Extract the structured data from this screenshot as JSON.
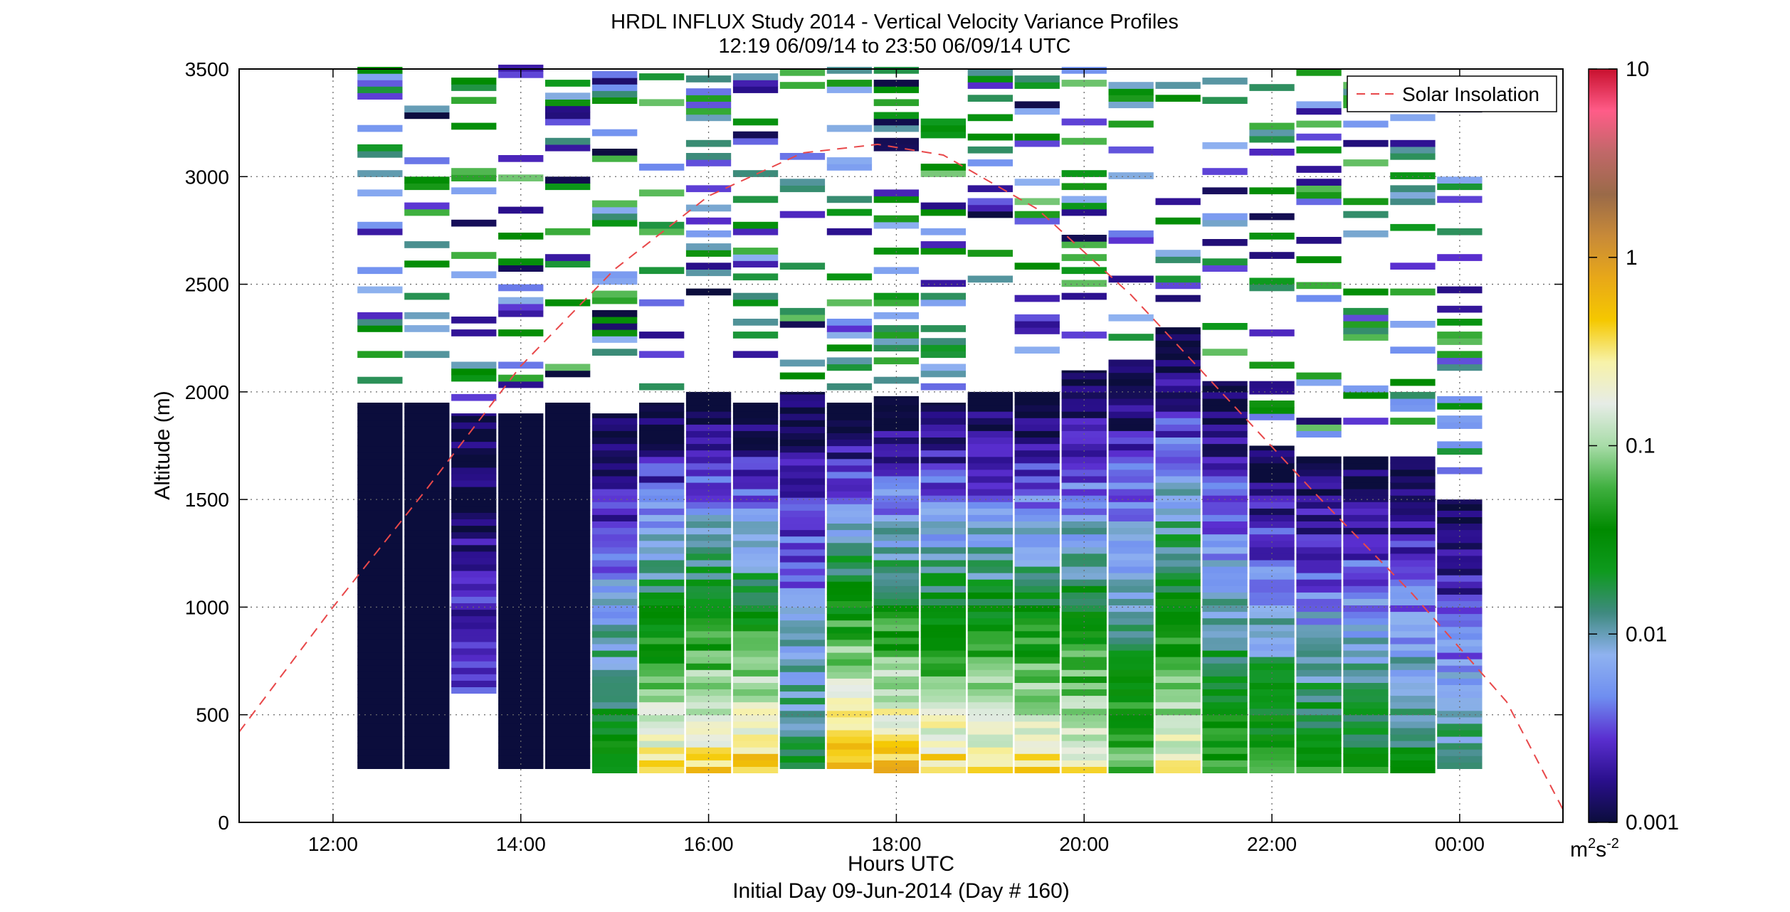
{
  "chart_data": {
    "type": "heatmap",
    "title": "HRDL INFLUX Study 2014 - Vertical Velocity Variance Profiles",
    "subtitle": "12:19 06/09/14 to 23:50 06/09/14  UTC",
    "xlabel": "Hours UTC",
    "xlabel2": "Initial Day 09-Jun-2014 (Day # 160)",
    "ylabel": "Altitude (m)",
    "xlim": [
      11,
      25.1
    ],
    "ylim": [
      0,
      3500
    ],
    "grid": true,
    "x_ticks": [
      {
        "value": 12,
        "label": "12:00"
      },
      {
        "value": 14,
        "label": "14:00"
      },
      {
        "value": 16,
        "label": "16:00"
      },
      {
        "value": 18,
        "label": "18:00"
      },
      {
        "value": 20,
        "label": "20:00"
      },
      {
        "value": 22,
        "label": "22:00"
      },
      {
        "value": 24,
        "label": "00:00"
      }
    ],
    "y_ticks": [
      {
        "value": 0,
        "label": "0"
      },
      {
        "value": 500,
        "label": "500"
      },
      {
        "value": 1000,
        "label": "1000"
      },
      {
        "value": 1500,
        "label": "1500"
      },
      {
        "value": 2000,
        "label": "2000"
      },
      {
        "value": 2500,
        "label": "2500"
      },
      {
        "value": 3000,
        "label": "3000"
      },
      {
        "value": 3500,
        "label": "3500"
      }
    ],
    "colorbar": {
      "scale": "log",
      "range": [
        0.001,
        10
      ],
      "ticks": [
        {
          "value": 0.001,
          "label": "0.001"
        },
        {
          "value": 0.01,
          "label": "0.01"
        },
        {
          "value": 0.1,
          "label": "0.1"
        },
        {
          "value": 1,
          "label": "1"
        },
        {
          "value": 10,
          "label": "10"
        }
      ],
      "unit_base": "m",
      "unit_sup1": "2",
      "unit_mid": "s",
      "unit_sup2": "-2",
      "stops": [
        "#0b0d3c",
        "#2a0f8c",
        "#5a2fd0",
        "#6f8ef0",
        "#8fb2f0",
        "#3f8a80",
        "#0e9a1e",
        "#008a00",
        "#40b040",
        "#a8dca8",
        "#e6ece6",
        "#f7f2a8",
        "#f5c800",
        "#e8a818",
        "#c88a38",
        "#9a6a48",
        "#c06868",
        "#ff5c88",
        "#c8102e"
      ]
    },
    "legend": {
      "entries": [
        {
          "name": "Solar Insolation",
          "color": "#e8484a",
          "style": "dashed"
        }
      ],
      "position": "top-right"
    },
    "time_columns": [
      12.5,
      13.0,
      13.5,
      14.0,
      14.5,
      15.0,
      15.5,
      16.0,
      16.5,
      17.0,
      17.5,
      18.0,
      18.5,
      19.0,
      19.5,
      20.0,
      20.5,
      21.0,
      21.5,
      22.0,
      22.5,
      23.0,
      23.5,
      24.0
    ],
    "column_tops": [
      1950,
      1950,
      1900,
      1900,
      1950,
      1900,
      1950,
      2000,
      1950,
      2000,
      1950,
      1980,
      1950,
      2000,
      2000,
      2100,
      2150,
      2300,
      2050,
      1750,
      1700,
      1700,
      1700,
      1500
    ],
    "column_bottoms": [
      250,
      250,
      600,
      250,
      250,
      230,
      230,
      230,
      230,
      250,
      250,
      230,
      230,
      230,
      230,
      230,
      230,
      230,
      230,
      230,
      230,
      230,
      230,
      250
    ],
    "low_level_log_variance": [
      -3,
      -3,
      -2.5,
      -3,
      -3,
      -1.4,
      -0.5,
      -0.4,
      -0.3,
      -1.7,
      -0.2,
      -0.3,
      -0.4,
      -0.5,
      -0.5,
      -0.6,
      -1.1,
      -0.6,
      -1.2,
      -1.3,
      -1.4,
      -1.5,
      -1.6,
      -1.8
    ],
    "solar_insolation_curve": {
      "x": [
        11,
        12,
        13,
        14,
        15,
        16,
        17,
        17.8,
        18.5,
        19.5,
        20.5,
        21.5,
        22.5,
        23.5,
        24.5,
        25.1
      ],
      "y": [
        420,
        1000,
        1550,
        2120,
        2570,
        2910,
        3110,
        3150,
        3100,
        2850,
        2450,
        1980,
        1510,
        1060,
        560,
        60
      ]
    }
  }
}
